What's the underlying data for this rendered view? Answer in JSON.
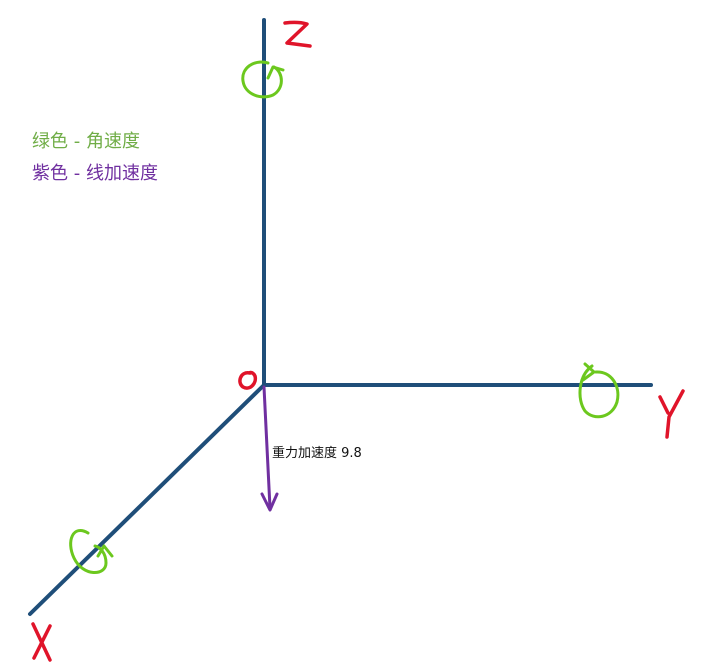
{
  "legend": {
    "green": {
      "text": "绿色 - 角速度",
      "color": "#70ad47"
    },
    "purple": {
      "text": "紫色 - 线加速度",
      "color": "#7030a0"
    }
  },
  "gravity_label": "重力加速度 9.8",
  "colors": {
    "axis": "#1f4e79",
    "axis_label": "#e0142a",
    "rotation": "#6cc81e",
    "acceleration": "#7030a0"
  },
  "icons": {
    "rotation_marker": "circular-arrow-icon",
    "acceleration_arrow": "down-arrow-icon"
  }
}
